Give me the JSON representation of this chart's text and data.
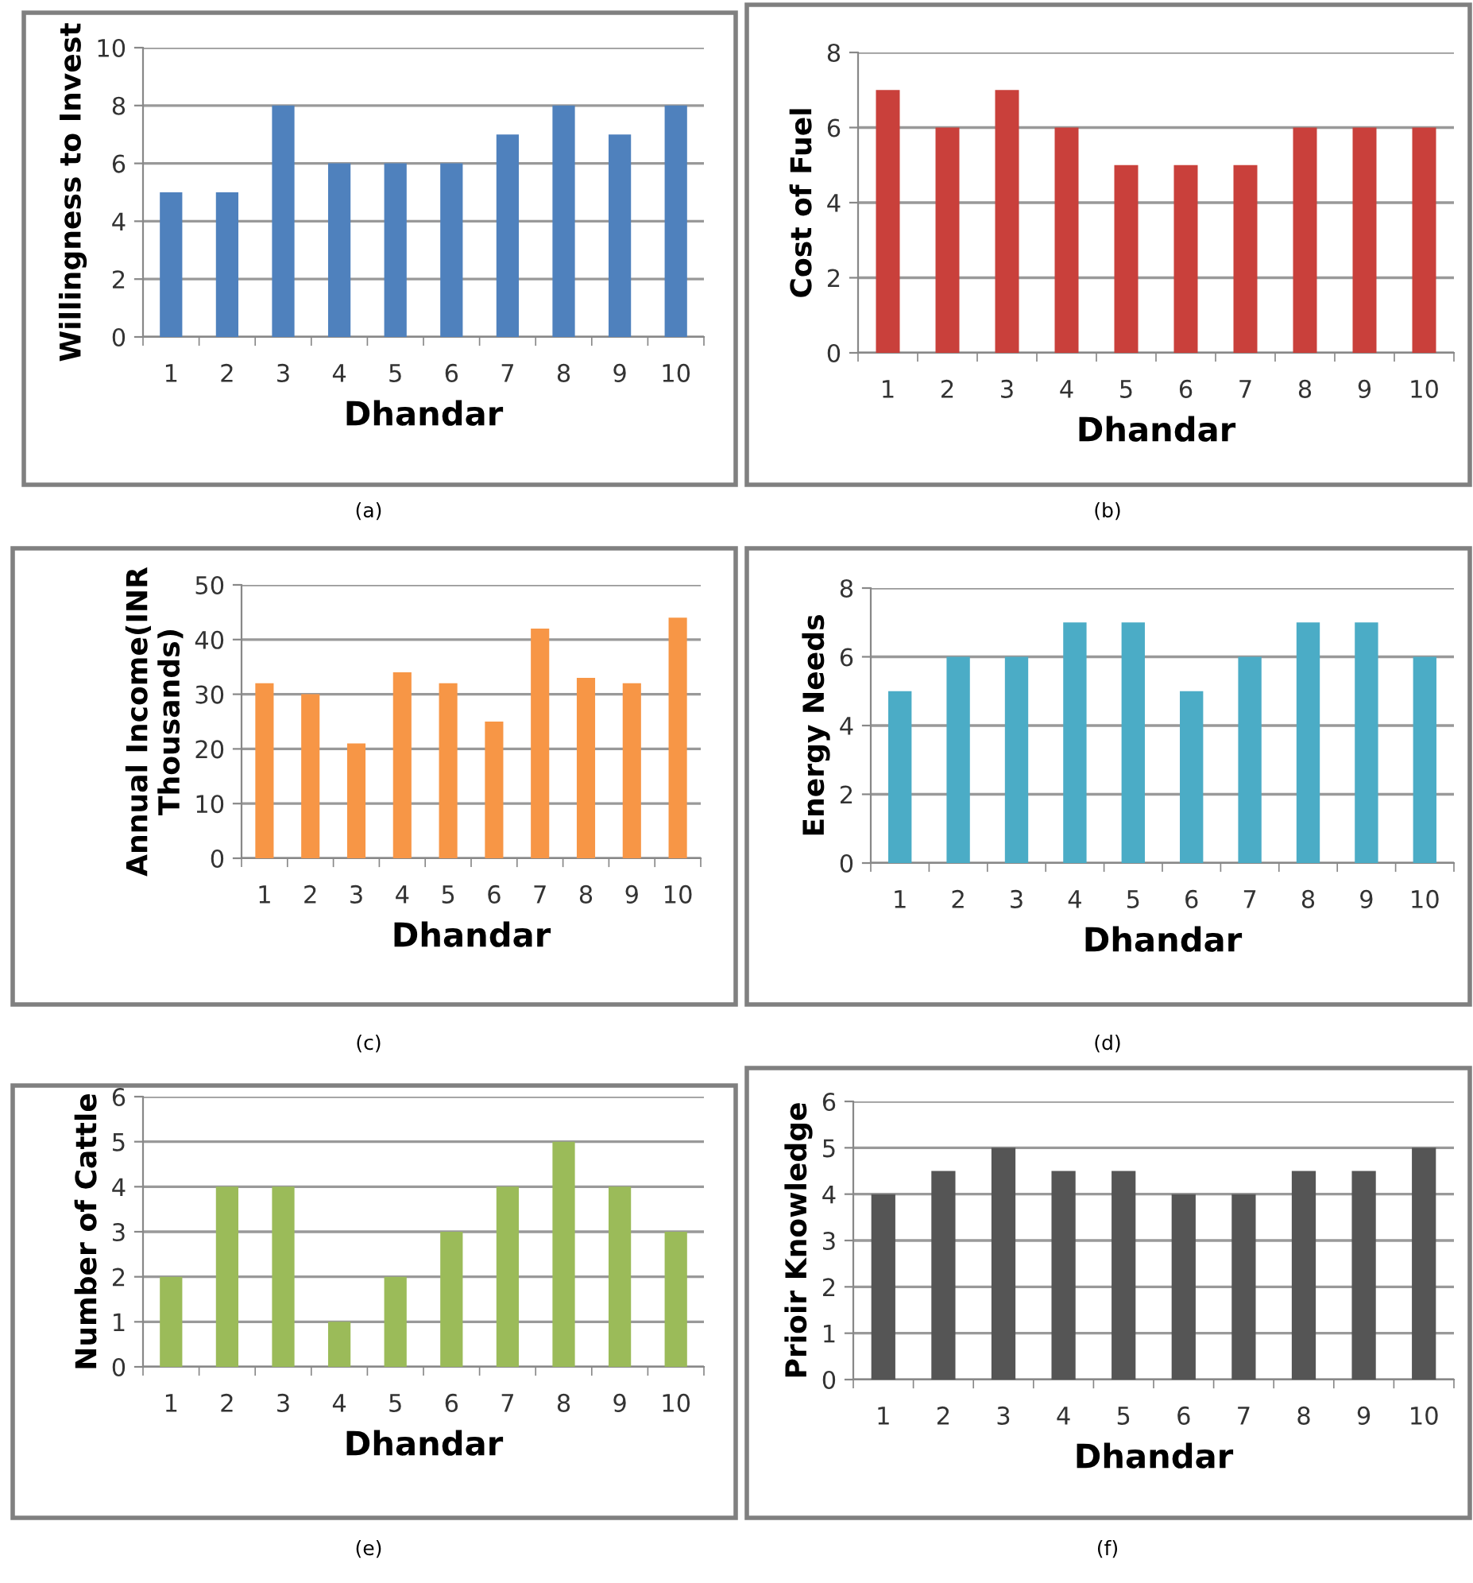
{
  "chart_data": [
    {
      "type": "bar",
      "xlabel": "Dhandar",
      "ylabel": "Willingness to Invest",
      "categories": [
        "1",
        "2",
        "3",
        "4",
        "5",
        "6",
        "7",
        "8",
        "9",
        "10"
      ],
      "values": [
        5,
        5,
        8,
        6,
        6,
        6,
        7,
        8,
        7,
        8
      ],
      "color": "#4f81bd",
      "ylim": [
        0,
        10
      ],
      "yticks": [
        0,
        2,
        4,
        6,
        8,
        10
      ],
      "grid": "y",
      "annotations": [
        "(a)"
      ]
    },
    {
      "type": "bar",
      "xlabel": "Dhandar",
      "ylabel": "Cost of Fuel",
      "categories": [
        "1",
        "2",
        "3",
        "4",
        "5",
        "6",
        "7",
        "8",
        "9",
        "10"
      ],
      "values": [
        7,
        6,
        7,
        6,
        5,
        5,
        5,
        6,
        6,
        6
      ],
      "color": "#c9403b",
      "ylim": [
        0,
        8
      ],
      "yticks": [
        0,
        2,
        4,
        6,
        8
      ],
      "grid": "y",
      "annotations": [
        "(b)"
      ]
    },
    {
      "type": "bar",
      "xlabel": "Dhandar",
      "ylabel": "Annual Income(INR\nThousands)",
      "categories": [
        "1",
        "2",
        "3",
        "4",
        "5",
        "6",
        "7",
        "8",
        "9",
        "10"
      ],
      "values": [
        32,
        30,
        21,
        34,
        32,
        25,
        42,
        33,
        32,
        44
      ],
      "color": "#f79646",
      "ylim": [
        0,
        50
      ],
      "yticks": [
        0,
        10,
        20,
        30,
        40,
        50
      ],
      "grid": "y",
      "annotations": [
        "(c)"
      ]
    },
    {
      "type": "bar",
      "xlabel": "Dhandar",
      "ylabel": "Energy Needs",
      "categories": [
        "1",
        "2",
        "3",
        "4",
        "5",
        "6",
        "7",
        "8",
        "9",
        "10"
      ],
      "values": [
        5,
        6,
        6,
        7,
        7,
        5,
        6,
        7,
        7,
        6
      ],
      "color": "#4bacc6",
      "ylim": [
        0,
        8
      ],
      "yticks": [
        0,
        2,
        4,
        6,
        8
      ],
      "grid": "y",
      "annotations": [
        "(d)"
      ]
    },
    {
      "type": "bar",
      "xlabel": "Dhandar",
      "ylabel": "Number of Cattle",
      "categories": [
        "1",
        "2",
        "3",
        "4",
        "5",
        "6",
        "7",
        "8",
        "9",
        "10"
      ],
      "values": [
        2,
        4,
        4,
        1,
        2,
        3,
        4,
        5,
        4,
        3
      ],
      "color": "#9bbb59",
      "ylim": [
        0,
        6
      ],
      "yticks": [
        0,
        1,
        2,
        3,
        4,
        5,
        6
      ],
      "grid": "y",
      "annotations": [
        "(e)"
      ]
    },
    {
      "type": "bar",
      "xlabel": "Dhandar",
      "ylabel": "Prioir Knowledge",
      "categories": [
        "1",
        "2",
        "3",
        "4",
        "5",
        "6",
        "7",
        "8",
        "9",
        "10"
      ],
      "values": [
        4,
        4.5,
        5,
        4.5,
        4.5,
        4,
        4,
        4.5,
        4.5,
        5
      ],
      "color": "#555555",
      "ylim": [
        0,
        6
      ],
      "yticks": [
        0,
        1,
        2,
        3,
        4,
        5,
        6
      ],
      "grid": "y",
      "annotations": [
        "(f)"
      ]
    }
  ]
}
